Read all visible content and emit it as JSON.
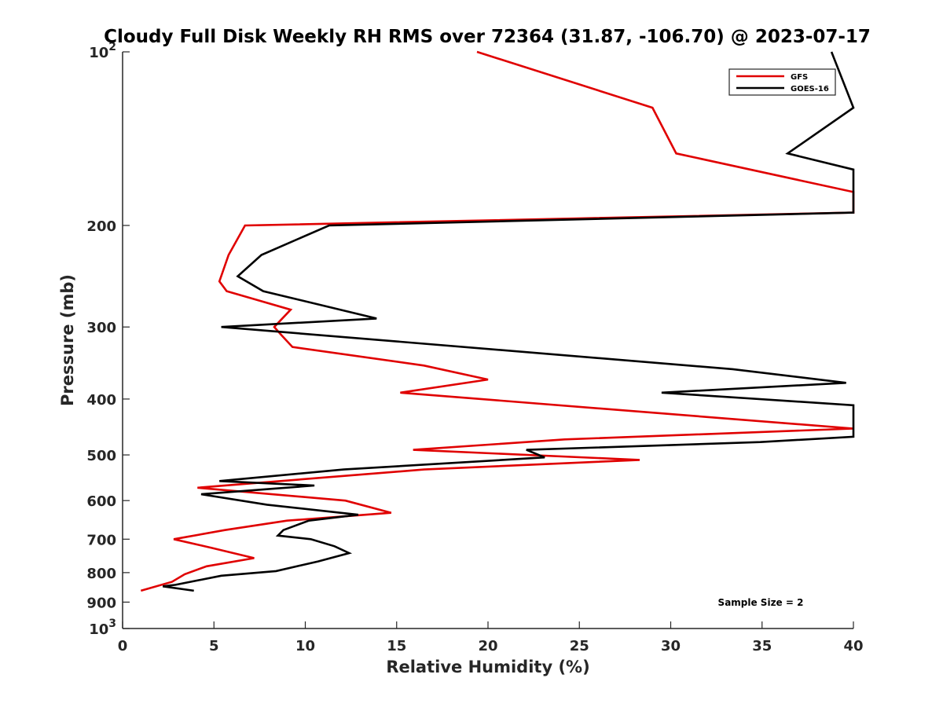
{
  "chart_data": {
    "type": "line",
    "title": "Cloudy Full Disk Weekly RH RMS over 72364 (31.87, -106.70) @ 2023-07-17",
    "xlabel": "Relative Humidity (%)",
    "ylabel": "Pressure (mb)",
    "xlim": [
      0,
      40
    ],
    "ylim": [
      100,
      1000
    ],
    "yscale": "log",
    "y_reversed": true,
    "grid": false,
    "legend_position": "top-right",
    "x_ticks": [
      0,
      5,
      10,
      15,
      20,
      25,
      30,
      35,
      40
    ],
    "y_ticks": [
      {
        "value": 100,
        "base": "10",
        "exp": "2"
      },
      {
        "value": 200,
        "label": "200"
      },
      {
        "value": 300,
        "label": "300"
      },
      {
        "value": 400,
        "label": "400"
      },
      {
        "value": 500,
        "label": "500"
      },
      {
        "value": 600,
        "label": "600"
      },
      {
        "value": 700,
        "label": "700"
      },
      {
        "value": 800,
        "label": "800"
      },
      {
        "value": 900,
        "label": "900"
      },
      {
        "value": 1000,
        "base": "10",
        "exp": "3"
      }
    ],
    "series": [
      {
        "name": "GFS",
        "color": "#e00000",
        "points": [
          [
            19.4,
            100
          ],
          [
            29.0,
            125
          ],
          [
            30.3,
            150
          ],
          [
            40.0,
            175
          ],
          [
            40.0,
            190
          ],
          [
            6.7,
            200
          ],
          [
            5.8,
            225
          ],
          [
            5.3,
            250
          ],
          [
            5.7,
            260
          ],
          [
            9.2,
            280
          ],
          [
            8.3,
            300
          ],
          [
            8.7,
            310
          ],
          [
            9.3,
            325
          ],
          [
            16.5,
            350
          ],
          [
            20.0,
            370
          ],
          [
            15.2,
            390
          ],
          [
            40.0,
            450
          ],
          [
            24.2,
            470
          ],
          [
            15.9,
            490
          ],
          [
            28.3,
            510
          ],
          [
            16.5,
            530
          ],
          [
            4.1,
            570
          ],
          [
            12.2,
            600
          ],
          [
            14.7,
            630
          ],
          [
            9.0,
            650
          ],
          [
            5.6,
            675
          ],
          [
            2.8,
            700
          ],
          [
            4.9,
            725
          ],
          [
            7.2,
            755
          ],
          [
            4.6,
            780
          ],
          [
            3.4,
            805
          ],
          [
            2.7,
            830
          ],
          [
            1.0,
            860
          ]
        ]
      },
      {
        "name": "GOES-16",
        "color": "#000000",
        "points": [
          [
            38.8,
            100
          ],
          [
            40.0,
            125
          ],
          [
            36.4,
            150
          ],
          [
            40.0,
            160
          ],
          [
            40.0,
            190
          ],
          [
            11.3,
            200
          ],
          [
            7.6,
            225
          ],
          [
            6.3,
            245
          ],
          [
            7.7,
            260
          ],
          [
            13.9,
            290
          ],
          [
            5.4,
            300
          ],
          [
            33.4,
            355
          ],
          [
            39.6,
            375
          ],
          [
            29.5,
            390
          ],
          [
            40.0,
            410
          ],
          [
            40.0,
            465
          ],
          [
            34.9,
            475
          ],
          [
            22.1,
            490
          ],
          [
            23.1,
            505
          ],
          [
            12.1,
            530
          ],
          [
            5.3,
            555
          ],
          [
            10.5,
            565
          ],
          [
            4.3,
            585
          ],
          [
            7.9,
            610
          ],
          [
            12.9,
            635
          ],
          [
            10.2,
            650
          ],
          [
            8.8,
            675
          ],
          [
            8.5,
            690
          ],
          [
            10.3,
            700
          ],
          [
            11.6,
            720
          ],
          [
            12.4,
            740
          ],
          [
            10.7,
            765
          ],
          [
            8.4,
            795
          ],
          [
            5.4,
            810
          ],
          [
            2.9,
            840
          ],
          [
            2.2,
            845
          ],
          [
            3.9,
            860
          ]
        ]
      }
    ],
    "annotation": "Sample Size = 2"
  }
}
